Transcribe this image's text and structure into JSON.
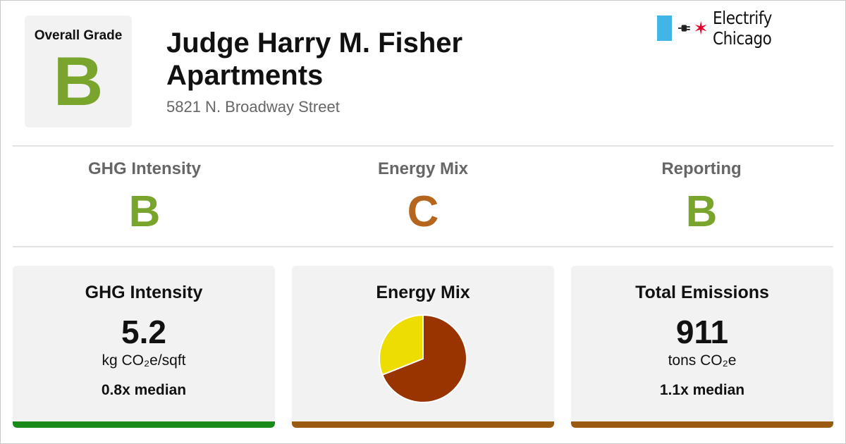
{
  "overall": {
    "label": "Overall Grade",
    "grade": "B",
    "grade_color": "#7aa52c"
  },
  "building": {
    "name": "Judge Harry M. Fisher Apartments",
    "address": "5821 N. Broadway Street"
  },
  "logo": {
    "text": "Electrify Chicago",
    "flag_color": "#41b6e6",
    "star_color": "#e4002b",
    "icons": [
      "plug-icon",
      "chicago-star-icon"
    ]
  },
  "grades": [
    {
      "name": "GHG Intensity",
      "grade": "B",
      "color": "#7aa52c"
    },
    {
      "name": "Energy Mix",
      "grade": "C",
      "color": "#b5651d"
    },
    {
      "name": "Reporting",
      "grade": "B",
      "color": "#7aa52c"
    }
  ],
  "cards": {
    "ghg": {
      "title": "GHG Intensity",
      "value": "5.2",
      "unit": "kg CO₂e/sqft",
      "median": "0.8x median",
      "bar_color": "#1a8a1a"
    },
    "mix": {
      "title": "Energy Mix",
      "bar_color": "#9a5a10"
    },
    "emissions": {
      "title": "Total Emissions",
      "value": "911",
      "unit": "tons CO₂e",
      "median": "1.1x median",
      "bar_color": "#9a5a10"
    }
  },
  "chart_data": {
    "type": "pie",
    "slices": [
      {
        "value": 69,
        "color": "#993300"
      },
      {
        "value": 31,
        "color": "#eedd00"
      }
    ]
  }
}
